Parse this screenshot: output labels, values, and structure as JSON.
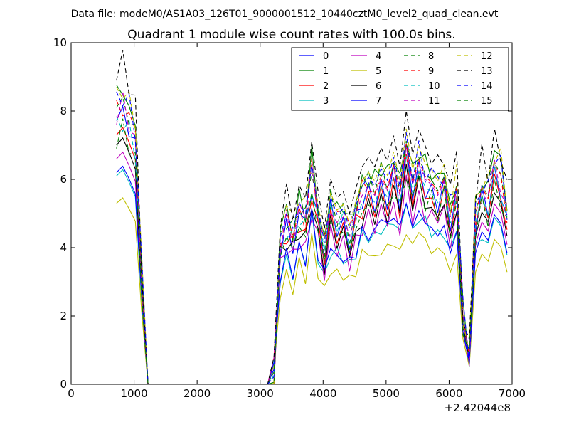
{
  "figure": {
    "suptitle": "Data file: modeM0/AS1A03_126T01_9000001512_10440cztM0_level2_quad_clean.evt"
  },
  "chart_data": {
    "type": "line",
    "title": "Quadrant 1 module wise count rates with 100.0s bins.",
    "xlabel": "",
    "ylabel": "",
    "xlim": [
      0,
      7000
    ],
    "ylim": [
      0,
      10
    ],
    "x_offset_label": "+2.42044e8",
    "xticks": [
      "0",
      "1000",
      "2000",
      "3000",
      "4000",
      "5000",
      "6000",
      "7000"
    ],
    "yticks": [
      "0",
      "2",
      "4",
      "6",
      "8",
      "10"
    ],
    "grid": false,
    "legend_position": "top-right",
    "legend_columns": 4,
    "series": [
      {
        "name": "0",
        "color": "#0000ff",
        "dash": "solid",
        "base": 7.6,
        "amp": 1.0
      },
      {
        "name": "1",
        "color": "#008000",
        "dash": "solid",
        "base": 8.4,
        "amp": 1.0
      },
      {
        "name": "2",
        "color": "#ff0000",
        "dash": "solid",
        "base": 7.3,
        "amp": 0.9
      },
      {
        "name": "3",
        "color": "#00bfbf",
        "dash": "solid",
        "base": 6.1,
        "amp": 0.85
      },
      {
        "name": "4",
        "color": "#bf00bf",
        "dash": "solid",
        "base": 6.6,
        "amp": 0.9
      },
      {
        "name": "5",
        "color": "#bfbf00",
        "dash": "solid",
        "base": 5.3,
        "amp": 0.8
      },
      {
        "name": "6",
        "color": "#000000",
        "dash": "solid",
        "base": 7.0,
        "amp": 0.95
      },
      {
        "name": "7",
        "color": "#0000ff",
        "dash": "solid",
        "base": 6.2,
        "amp": 0.9
      },
      {
        "name": "8",
        "color": "#008000",
        "dash": "dashed",
        "base": 8.1,
        "amp": 1.05
      },
      {
        "name": "9",
        "color": "#ff0000",
        "dash": "dashed",
        "base": 8.0,
        "amp": 1.05
      },
      {
        "name": "10",
        "color": "#00bfbf",
        "dash": "dashed",
        "base": 7.6,
        "amp": 1.0
      },
      {
        "name": "11",
        "color": "#bf00bf",
        "dash": "dashed",
        "base": 7.9,
        "amp": 1.05
      },
      {
        "name": "12",
        "color": "#bfbf00",
        "dash": "dashed",
        "base": 8.5,
        "amp": 1.1
      },
      {
        "name": "13",
        "color": "#000000",
        "dash": "dashed",
        "base": 9.1,
        "amp": 1.15
      },
      {
        "name": "14",
        "color": "#0000ff",
        "dash": "dashed",
        "base": 8.3,
        "amp": 1.1
      },
      {
        "name": "15",
        "color": "#008000",
        "dash": "dashed",
        "base": 7.2,
        "amp": 1.0
      }
    ],
    "x": [
      720,
      820,
      920,
      1020,
      1120,
      1220,
      1320,
      1420,
      1520,
      1620,
      1720,
      1820,
      1920,
      2020,
      2120,
      2220,
      2320,
      2420,
      2520,
      2620,
      2720,
      2820,
      2920,
      3020,
      3120,
      3220,
      3320,
      3420,
      3520,
      3620,
      3720,
      3820,
      3920,
      4020,
      4120,
      4220,
      4320,
      4420,
      4520,
      4620,
      4720,
      4820,
      4920,
      5020,
      5120,
      5220,
      5320,
      5420,
      5520,
      5620,
      5720,
      5820,
      5920,
      6020,
      6120,
      6220,
      6320,
      6420,
      6520,
      6620,
      6720,
      6820,
      6920
    ],
    "profile": [
      1.0,
      1.03,
      0.97,
      0.9,
      0.4,
      0,
      0,
      0,
      0,
      0,
      0,
      0,
      0,
      0,
      0,
      0,
      0,
      0,
      0,
      0,
      0,
      0,
      0,
      0,
      0,
      0.05,
      0.52,
      0.6,
      0.55,
      0.64,
      0.6,
      0.78,
      0.62,
      0.5,
      0.66,
      0.6,
      0.62,
      0.55,
      0.63,
      0.7,
      0.73,
      0.7,
      0.76,
      0.72,
      0.8,
      0.7,
      0.88,
      0.74,
      0.82,
      0.76,
      0.74,
      0.7,
      0.75,
      0.62,
      0.72,
      0.25,
      0.1,
      0.62,
      0.72,
      0.68,
      0.8,
      0.76,
      0.62
    ],
    "noise": [
      0.02,
      0.05,
      -0.02,
      0.06,
      -0.03,
      0,
      0,
      0,
      0,
      0,
      0,
      0,
      0,
      0,
      0,
      0,
      0,
      0,
      0,
      0,
      0,
      0,
      0,
      0,
      0,
      0.01,
      -0.04,
      0.05,
      -0.06,
      0.03,
      0.04,
      -0.07,
      0.06,
      -0.05,
      0.07,
      -0.04,
      0.03,
      -0.06,
      0.05,
      -0.03,
      0.06,
      -0.05,
      0.04,
      -0.06,
      0.07,
      -0.05,
      0.06,
      -0.04,
      0.05,
      -0.06,
      0.04,
      -0.05,
      0.06,
      -0.04,
      0.05,
      -0.02,
      0.01,
      -0.05,
      0.06,
      -0.04,
      0.05,
      -0.06,
      0.04
    ]
  }
}
